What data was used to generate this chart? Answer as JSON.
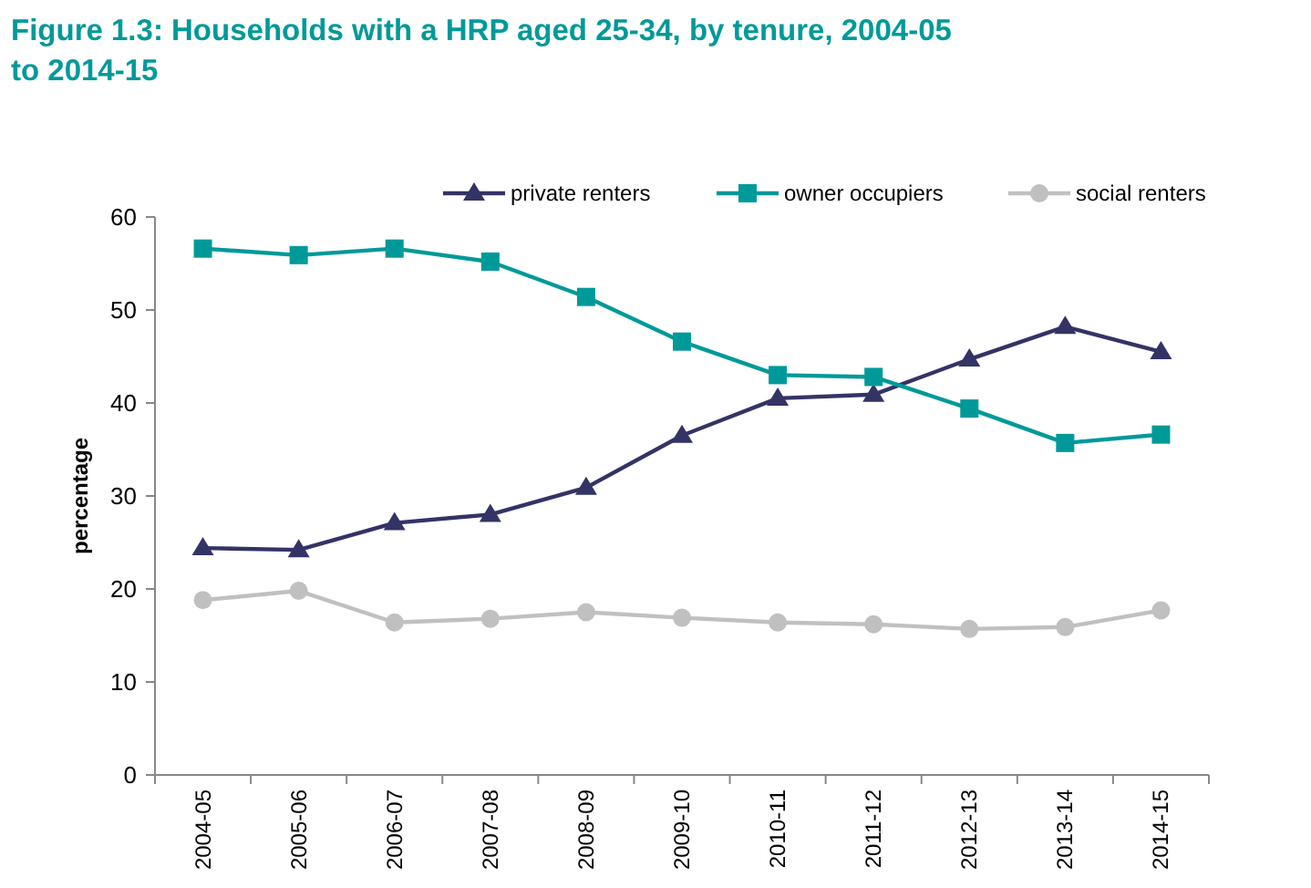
{
  "chart_data": {
    "type": "line",
    "title": "Figure 1.3: Households with a HRP aged 25-34, by tenure, 2004-05 to 2014-15",
    "ylabel": "percentage",
    "categories": [
      "2004-05",
      "2005-06",
      "2006-07",
      "2007-08",
      "2008-09",
      "2009-10",
      "2010-11",
      "2011-12",
      "2012-13",
      "2013-14",
      "2014-15"
    ],
    "series": [
      {
        "name": "private renters",
        "color": "#333366",
        "marker": "triangle",
        "values": [
          24.4,
          24.2,
          27.1,
          28.0,
          30.9,
          36.5,
          40.5,
          40.9,
          44.7,
          48.2,
          45.5
        ]
      },
      {
        "name": "owner occupiers",
        "color": "#009999",
        "marker": "square",
        "values": [
          56.6,
          55.9,
          56.6,
          55.2,
          51.4,
          46.6,
          43.0,
          42.8,
          39.4,
          35.7,
          36.6
        ]
      },
      {
        "name": "social renters",
        "color": "#c0c0c0",
        "marker": "circle",
        "values": [
          18.8,
          19.8,
          16.4,
          16.8,
          17.5,
          16.9,
          16.4,
          16.2,
          15.7,
          15.9,
          17.7
        ]
      }
    ],
    "ylim": [
      0,
      60
    ],
    "yticks": [
      0,
      10,
      20,
      30,
      40,
      50,
      60
    ],
    "grid": false,
    "legend": "top right"
  }
}
